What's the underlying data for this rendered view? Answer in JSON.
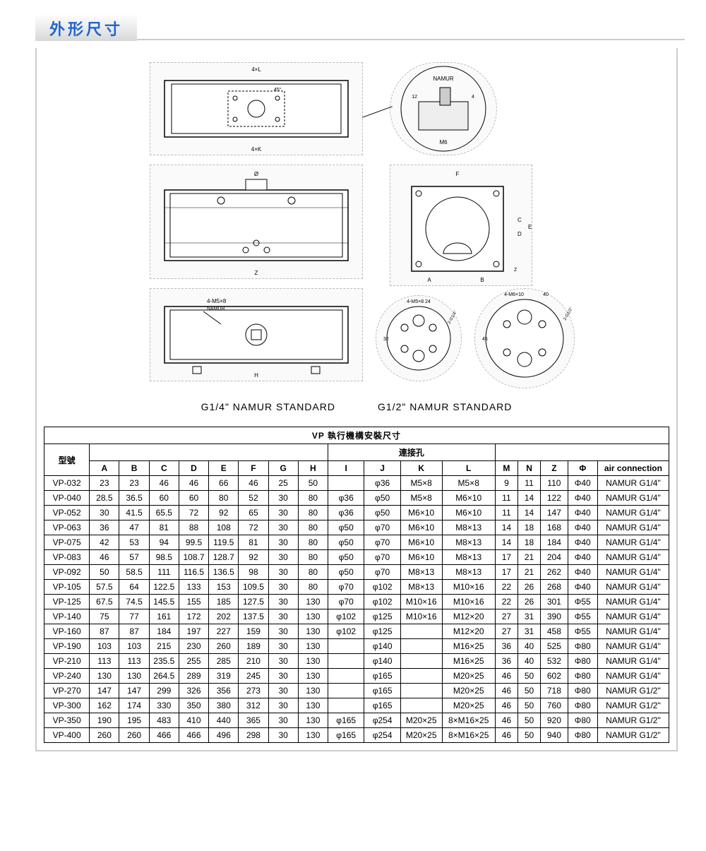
{
  "section_title": "外形尺寸",
  "colors": {
    "title_text": "#2266cc",
    "title_bg_gradient_start": "#ffffff",
    "title_bg_gradient_end": "#d8d8d8",
    "border": "#cccccc",
    "table_border": "#000000",
    "background": "#ffffff"
  },
  "diagram": {
    "labels": {
      "top_view": "top actuator view",
      "detail_callout": "NAMUR detail",
      "detail_dims": [
        "M6",
        "12",
        "4"
      ],
      "front_view": "front view",
      "front_dims": [
        "Ø",
        "Z"
      ],
      "side_view": "side view",
      "side_dims": [
        "F",
        "A",
        "B",
        "C",
        "D",
        "E",
        "Z"
      ],
      "bottom_view": "bottom view",
      "bottom_dims": [
        "4-M5×8",
        "NAMUR",
        "H"
      ],
      "flange1": "G1/4 flange",
      "flange1_dims": [
        "4-M5×8",
        "24",
        "32",
        "2-G1/4\""
      ],
      "flange2": "G1/2 flange",
      "flange2_dims": [
        "4-M6×10",
        "40",
        "45",
        "2-G1/2\""
      ],
      "top_dims": [
        "4×L",
        "4×K",
        "45°"
      ]
    },
    "captions": {
      "left": "G1/4\" NAMUR STANDARD",
      "right": "G1/2\" NAMUR STANDARD"
    }
  },
  "table": {
    "title": "VP 執行機構安裝尺寸",
    "model_header": "型號",
    "group_header": "連接孔",
    "columns": [
      "A",
      "B",
      "C",
      "D",
      "E",
      "F",
      "G",
      "H",
      "I",
      "J",
      "K",
      "L",
      "M",
      "N",
      "Z",
      "Φ",
      "air connection"
    ],
    "rows": [
      {
        "model": "VP-032",
        "A": "23",
        "B": "23",
        "C": "46",
        "D": "46",
        "E": "66",
        "F": "46",
        "G": "25",
        "H": "50",
        "I": "",
        "J": "φ36",
        "K": "M5×8",
        "L": "M5×8",
        "M": "9",
        "N": "11",
        "Z": "110",
        "PHI": "Φ40",
        "AIR": "NAMUR G1/4\""
      },
      {
        "model": "VP-040",
        "A": "28.5",
        "B": "36.5",
        "C": "60",
        "D": "60",
        "E": "80",
        "F": "52",
        "G": "30",
        "H": "80",
        "I": "φ36",
        "J": "φ50",
        "K": "M5×8",
        "L": "M6×10",
        "M": "11",
        "N": "14",
        "Z": "122",
        "PHI": "Φ40",
        "AIR": "NAMUR G1/4\""
      },
      {
        "model": "VP-052",
        "A": "30",
        "B": "41.5",
        "C": "65.5",
        "D": "72",
        "E": "92",
        "F": "65",
        "G": "30",
        "H": "80",
        "I": "φ36",
        "J": "φ50",
        "K": "M6×10",
        "L": "M6×10",
        "M": "11",
        "N": "14",
        "Z": "147",
        "PHI": "Φ40",
        "AIR": "NAMUR G1/4\""
      },
      {
        "model": "VP-063",
        "A": "36",
        "B": "47",
        "C": "81",
        "D": "88",
        "E": "108",
        "F": "72",
        "G": "30",
        "H": "80",
        "I": "φ50",
        "J": "φ70",
        "K": "M6×10",
        "L": "M8×13",
        "M": "14",
        "N": "18",
        "Z": "168",
        "PHI": "Φ40",
        "AIR": "NAMUR G1/4\""
      },
      {
        "model": "VP-075",
        "A": "42",
        "B": "53",
        "C": "94",
        "D": "99.5",
        "E": "119.5",
        "F": "81",
        "G": "30",
        "H": "80",
        "I": "φ50",
        "J": "φ70",
        "K": "M6×10",
        "L": "M8×13",
        "M": "14",
        "N": "18",
        "Z": "184",
        "PHI": "Φ40",
        "AIR": "NAMUR G1/4\""
      },
      {
        "model": "VP-083",
        "A": "46",
        "B": "57",
        "C": "98.5",
        "D": "108.7",
        "E": "128.7",
        "F": "92",
        "G": "30",
        "H": "80",
        "I": "φ50",
        "J": "φ70",
        "K": "M6×10",
        "L": "M8×13",
        "M": "17",
        "N": "21",
        "Z": "204",
        "PHI": "Φ40",
        "AIR": "NAMUR G1/4\""
      },
      {
        "model": "VP-092",
        "A": "50",
        "B": "58.5",
        "C": "111",
        "D": "116.5",
        "E": "136.5",
        "F": "98",
        "G": "30",
        "H": "80",
        "I": "φ50",
        "J": "φ70",
        "K": "M8×13",
        "L": "M8×13",
        "M": "17",
        "N": "21",
        "Z": "262",
        "PHI": "Φ40",
        "AIR": "NAMUR G1/4\""
      },
      {
        "model": "VP-105",
        "A": "57.5",
        "B": "64",
        "C": "122.5",
        "D": "133",
        "E": "153",
        "F": "109.5",
        "G": "30",
        "H": "80",
        "I": "φ70",
        "J": "φ102",
        "K": "M8×13",
        "L": "M10×16",
        "M": "22",
        "N": "26",
        "Z": "268",
        "PHI": "Φ40",
        "AIR": "NAMUR G1/4\""
      },
      {
        "model": "VP-125",
        "A": "67.5",
        "B": "74.5",
        "C": "145.5",
        "D": "155",
        "E": "185",
        "F": "127.5",
        "G": "30",
        "H": "130",
        "I": "φ70",
        "J": "φ102",
        "K": "M10×16",
        "L": "M10×16",
        "M": "22",
        "N": "26",
        "Z": "301",
        "PHI": "Φ55",
        "AIR": "NAMUR G1/4\""
      },
      {
        "model": "VP-140",
        "A": "75",
        "B": "77",
        "C": "161",
        "D": "172",
        "E": "202",
        "F": "137.5",
        "G": "30",
        "H": "130",
        "I": "φ102",
        "J": "φ125",
        "K": "M10×16",
        "L": "M12×20",
        "M": "27",
        "N": "31",
        "Z": "390",
        "PHI": "Φ55",
        "AIR": "NAMUR G1/4\""
      },
      {
        "model": "VP-160",
        "A": "87",
        "B": "87",
        "C": "184",
        "D": "197",
        "E": "227",
        "F": "159",
        "G": "30",
        "H": "130",
        "I": "φ102",
        "J": "φ125",
        "K": "",
        "L": "M12×20",
        "M": "27",
        "N": "31",
        "Z": "458",
        "PHI": "Φ55",
        "AIR": "NAMUR G1/4\""
      },
      {
        "model": "VP-190",
        "A": "103",
        "B": "103",
        "C": "215",
        "D": "230",
        "E": "260",
        "F": "189",
        "G": "30",
        "H": "130",
        "I": "",
        "J": "φ140",
        "K": "",
        "L": "M16×25",
        "M": "36",
        "N": "40",
        "Z": "525",
        "PHI": "Φ80",
        "AIR": "NAMUR G1/4\""
      },
      {
        "model": "VP-210",
        "A": "113",
        "B": "113",
        "C": "235.5",
        "D": "255",
        "E": "285",
        "F": "210",
        "G": "30",
        "H": "130",
        "I": "",
        "J": "φ140",
        "K": "",
        "L": "M16×25",
        "M": "36",
        "N": "40",
        "Z": "532",
        "PHI": "Φ80",
        "AIR": "NAMUR G1/4\""
      },
      {
        "model": "VP-240",
        "A": "130",
        "B": "130",
        "C": "264.5",
        "D": "289",
        "E": "319",
        "F": "245",
        "G": "30",
        "H": "130",
        "I": "",
        "J": "φ165",
        "K": "",
        "L": "M20×25",
        "M": "46",
        "N": "50",
        "Z": "602",
        "PHI": "Φ80",
        "AIR": "NAMUR G1/4\""
      },
      {
        "model": "VP-270",
        "A": "147",
        "B": "147",
        "C": "299",
        "D": "326",
        "E": "356",
        "F": "273",
        "G": "30",
        "H": "130",
        "I": "",
        "J": "φ165",
        "K": "",
        "L": "M20×25",
        "M": "46",
        "N": "50",
        "Z": "718",
        "PHI": "Φ80",
        "AIR": "NAMUR G1/2\""
      },
      {
        "model": "VP-300",
        "A": "162",
        "B": "174",
        "C": "330",
        "D": "350",
        "E": "380",
        "F": "312",
        "G": "30",
        "H": "130",
        "I": "",
        "J": "φ165",
        "K": "",
        "L": "M20×25",
        "M": "46",
        "N": "50",
        "Z": "760",
        "PHI": "Φ80",
        "AIR": "NAMUR G1/2\""
      },
      {
        "model": "VP-350",
        "A": "190",
        "B": "195",
        "C": "483",
        "D": "410",
        "E": "440",
        "F": "365",
        "G": "30",
        "H": "130",
        "I": "φ165",
        "J": "φ254",
        "K": "M20×25",
        "L": "8×M16×25",
        "M": "46",
        "N": "50",
        "Z": "920",
        "PHI": "Φ80",
        "AIR": "NAMUR G1/2\""
      },
      {
        "model": "VP-400",
        "A": "260",
        "B": "260",
        "C": "466",
        "D": "466",
        "E": "496",
        "F": "298",
        "G": "30",
        "H": "130",
        "I": "φ165",
        "J": "φ254",
        "K": "M20×25",
        "L": "8×M16×25",
        "M": "46",
        "N": "50",
        "Z": "940",
        "PHI": "Φ80",
        "AIR": "NAMUR G1/2\""
      }
    ]
  }
}
